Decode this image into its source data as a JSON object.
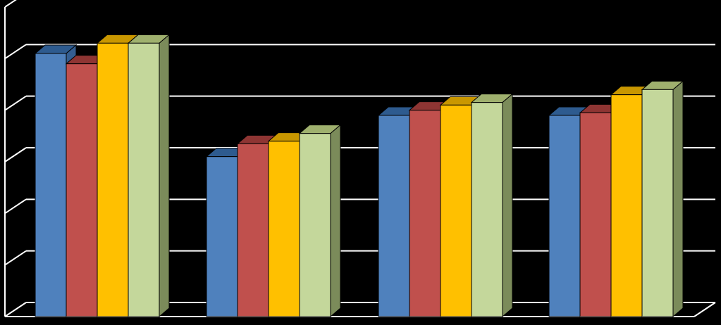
{
  "chart_data": {
    "type": "bar",
    "title": "",
    "xlabel": "",
    "ylabel": "",
    "ylim": [
      0,
      6
    ],
    "grid": true,
    "legend": "none",
    "categories": [
      "",
      "",
      "",
      ""
    ],
    "series": [
      {
        "values": [
          5.1,
          3.1,
          3.9,
          3.9
        ]
      },
      {
        "values": [
          4.9,
          3.35,
          4.0,
          3.95
        ]
      },
      {
        "values": [
          5.3,
          3.4,
          4.1,
          4.3
        ]
      },
      {
        "values": [
          5.3,
          3.55,
          4.15,
          4.4
        ]
      }
    ],
    "colors": {
      "series": [
        "#4F81BD",
        "#C0504D",
        "#FFC000",
        "#C4D79B"
      ],
      "top": [
        "#2E5B8F",
        "#8E3533",
        "#C99700",
        "#9FB06E"
      ],
      "side": [
        "#345E91",
        "#8A3432",
        "#B88C00",
        "#7B8B5A"
      ],
      "background": "#000000",
      "grid": "#FFFFFF"
    }
  }
}
